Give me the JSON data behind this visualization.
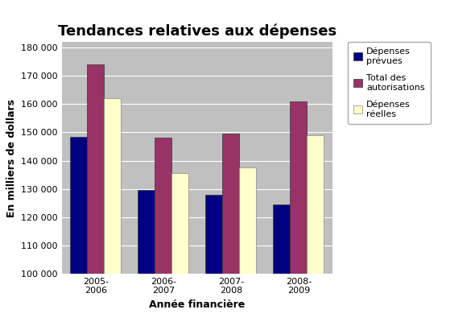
{
  "title": "Tendances relatives aux dépenses",
  "xlabel": "Année financière",
  "ylabel": "En milliers de dollars",
  "categories": [
    "2005-\n2006",
    "2006-\n2007",
    "2007-\n2008",
    "2008-\n2009"
  ],
  "series": {
    "Dépenses\nprévues": [
      148500,
      129500,
      128000,
      124500
    ],
    "Total des\nautorisations": [
      174000,
      148000,
      149500,
      161000
    ],
    "Dépenses\nréelles": [
      162000,
      135500,
      137500,
      149000
    ]
  },
  "colors": {
    "Dépenses\nprévues": "#000080",
    "Total des\nautorisations": "#993366",
    "Dépenses\nréelles": "#FFFFCC"
  },
  "legend_labels": [
    "Dépenses\nprévues",
    "Total des\nautorisations",
    "Dépenses\nréelles"
  ],
  "ylim": [
    100000,
    182000
  ],
  "yticks": [
    100000,
    110000,
    120000,
    130000,
    140000,
    150000,
    160000,
    170000,
    180000
  ],
  "plot_bg": "#C0C0C0",
  "fig_bg": "#FFFFFF",
  "bar_width": 0.25,
  "title_fontsize": 13,
  "axis_label_fontsize": 9,
  "tick_fontsize": 8,
  "legend_fontsize": 8
}
